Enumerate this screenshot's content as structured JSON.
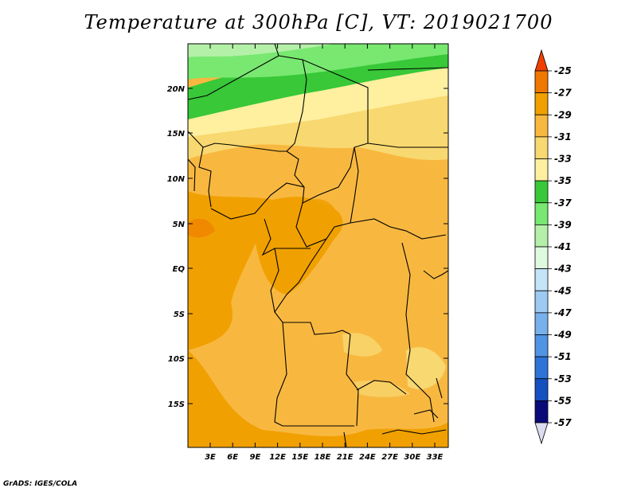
{
  "title": "Temperature at 300hPa [C], VT: 2019021700",
  "footer": "GrADS: IGES/COLA",
  "map": {
    "lat_labels": [
      "20N",
      "15N",
      "10N",
      "5N",
      "EQ",
      "5S",
      "10S",
      "15S"
    ],
    "lon_labels": [
      "3E",
      "6E",
      "9E",
      "12E",
      "15E",
      "18E",
      "21E",
      "24E",
      "27E",
      "30E",
      "33E"
    ]
  },
  "colorbar": {
    "labels": [
      "-25",
      "-27",
      "-29",
      "-31",
      "-33",
      "-35",
      "-37",
      "-39",
      "-41",
      "-43",
      "-45",
      "-47",
      "-49",
      "-51",
      "-53",
      "-55",
      "-57"
    ],
    "colors": [
      "#f04000",
      "#f07800",
      "#f0a000",
      "#f8b840",
      "#f8d870",
      "#fff0a0",
      "#38c838",
      "#78e870",
      "#b4f0a8",
      "#e0fae0",
      "#c4e4f8",
      "#9ccaf0",
      "#78b0ec",
      "#5094e4",
      "#2c74d8",
      "#1450c0",
      "#0a0a78",
      "#dcdcf0"
    ]
  }
}
